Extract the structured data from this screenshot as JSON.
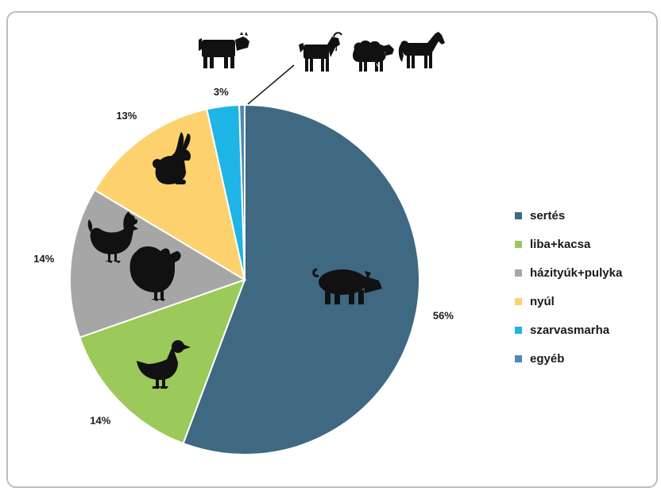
{
  "chart_data": {
    "type": "pie",
    "categories": [
      "sertés",
      "liba+kacsa",
      "házityúk+pulyka",
      "nyúl",
      "szarvasmarha",
      "egyéb"
    ],
    "values": [
      56,
      14,
      14,
      13,
      3,
      0.5
    ],
    "value_labels": [
      "56%",
      "14%",
      "14%",
      "13%",
      "3%",
      ""
    ],
    "colors": [
      "#3f6882",
      "#9bc95a",
      "#a6a6a6",
      "#fdd26e",
      "#1eb4e6",
      "#4f88b2"
    ],
    "legend_position": "right",
    "start_angle_deg": 0,
    "direction": "clockwise"
  },
  "icons": {
    "slice_icons": [
      "pig-icon",
      "duck-icon",
      "chicken-icon",
      "turkey-icon",
      "rabbit-icon"
    ],
    "top_icons": [
      "cow-icon",
      "goat-icon",
      "sheep-icon",
      "horse-icon"
    ]
  }
}
